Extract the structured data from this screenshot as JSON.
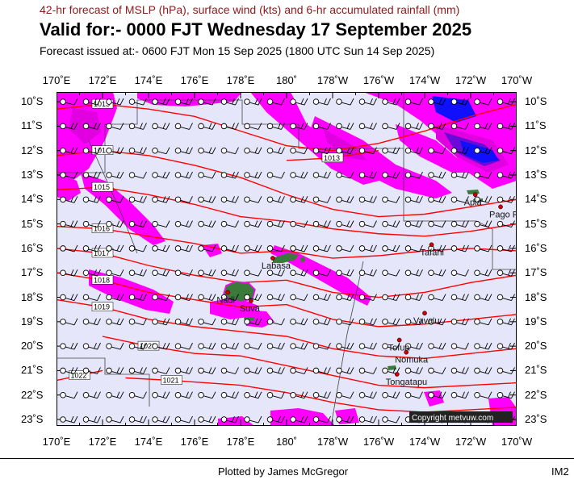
{
  "header": {
    "line1": "42-hr forecast of MSLP (hPa), surface wind (kts) and 6-hr accumulated rainfall (mm)",
    "valid": "Valid for:- 0000 FJT Wednesday 17 September 2025",
    "issued": "Forecast issued at:- 0600 FJT Mon 15 Sep 2025 (1800 UTC Sun 14 Sep 2025)"
  },
  "lon_labels": [
    "170˚E",
    "172˚E",
    "174˚E",
    "176˚E",
    "178˚E",
    "180˚",
    "178˚W",
    "176˚W",
    "174˚W",
    "172˚W",
    "170˚W"
  ],
  "lat_labels": [
    "10˚S",
    "11˚S",
    "12˚S",
    "13˚S",
    "14˚S",
    "15˚S",
    "16˚S",
    "17˚S",
    "18˚S",
    "19˚S",
    "20˚S",
    "21˚S",
    "22˚S",
    "23˚S"
  ],
  "places": [
    {
      "name": "Apia",
      "lon": -171.8,
      "lat": -13.8
    },
    {
      "name": "Pago Pago",
      "lon": -170.7,
      "lat": -14.3
    },
    {
      "name": "Tafahi",
      "lon": -173.7,
      "lat": -15.85
    },
    {
      "name": "Labasa",
      "lon": 179.4,
      "lat": -16.4
    },
    {
      "name": "Nadi",
      "lon": 177.45,
      "lat": -17.8
    },
    {
      "name": "Suva",
      "lon": 178.45,
      "lat": -18.15
    },
    {
      "name": "Vava'u",
      "lon": -174.0,
      "lat": -18.65
    },
    {
      "name": "Tofua",
      "lon": -175.1,
      "lat": -19.75
    },
    {
      "name": "Nomuka",
      "lon": -174.8,
      "lat": -20.25
    },
    {
      "name": "Tongatapu",
      "lon": -175.2,
      "lat": -21.15
    }
  ],
  "isobars": [
    {
      "label": "1013",
      "points": [
        [
          170,
          -10.3
        ],
        [
          172,
          -10.1
        ],
        [
          174,
          -10.3
        ],
        [
          176,
          -10.6
        ],
        [
          178,
          -11.2
        ],
        [
          180,
          -11.8
        ],
        [
          -178,
          -12.0
        ],
        [
          -176,
          -11.7
        ],
        [
          -174,
          -11.2
        ],
        [
          -172,
          -10.6
        ],
        [
          -170,
          -10.1
        ]
      ]
    },
    {
      "label": "1013",
      "points": [
        [
          180,
          -12.4
        ],
        [
          -178,
          -12.3
        ],
        [
          -176,
          -12.0
        ]
      ]
    },
    {
      "label": "1014",
      "points": [
        [
          170,
          -12.2
        ],
        [
          172,
          -12.0
        ],
        [
          174,
          -12.2
        ],
        [
          176,
          -12.6
        ],
        [
          178,
          -13.1
        ],
        [
          180,
          -13.8
        ],
        [
          -178,
          -14.4
        ],
        [
          -176,
          -14.7
        ],
        [
          -174,
          -14.6
        ],
        [
          -172,
          -14.3
        ],
        [
          -170,
          -14.0
        ]
      ]
    },
    {
      "label": "1015",
      "points": [
        [
          170,
          -13.6
        ],
        [
          172,
          -13.5
        ],
        [
          174,
          -13.8
        ],
        [
          176,
          -14.2
        ],
        [
          178,
          -14.7
        ],
        [
          180,
          -14.9
        ],
        [
          -178,
          -15.2
        ],
        [
          -176,
          -15.4
        ],
        [
          -174,
          -15.5
        ],
        [
          -172,
          -15.3
        ],
        [
          -170,
          -15.0
        ]
      ]
    },
    {
      "label": "1016",
      "points": [
        [
          170,
          -15.1
        ],
        [
          172,
          -15.2
        ],
        [
          174,
          -15.5
        ],
        [
          176,
          -15.8
        ],
        [
          178,
          -16.2
        ],
        [
          180,
          -16.1
        ],
        [
          -178,
          -16.4
        ],
        [
          -176,
          -16.3
        ],
        [
          -174,
          -16.1
        ],
        [
          -172,
          -16.0
        ],
        [
          -170,
          -16.1
        ]
      ]
    },
    {
      "label": "1017",
      "points": [
        [
          170,
          -16.0
        ],
        [
          172,
          -16.2
        ],
        [
          174,
          -16.7
        ],
        [
          176,
          -17.1
        ],
        [
          178,
          -17.4
        ],
        [
          180,
          -17.3
        ],
        [
          -178,
          -17.8
        ],
        [
          -176,
          -18.0
        ],
        [
          -174,
          -17.8
        ],
        [
          -172,
          -17.4
        ],
        [
          -170,
          -17.1
        ]
      ]
    },
    {
      "label": "1018",
      "points": [
        [
          170,
          -17.0
        ],
        [
          172,
          -17.3
        ],
        [
          174,
          -17.8
        ],
        [
          176,
          -18.1
        ],
        [
          178,
          -18.4
        ],
        [
          180,
          -18.3
        ],
        [
          -178,
          -18.9
        ],
        [
          -176,
          -19.2
        ],
        [
          -174,
          -19.1
        ],
        [
          -172,
          -18.9
        ],
        [
          -170,
          -18.7
        ]
      ]
    },
    {
      "label": "1019",
      "points": [
        [
          170,
          -18.1
        ],
        [
          172,
          -18.4
        ],
        [
          174,
          -18.9
        ],
        [
          176,
          -19.2
        ],
        [
          178,
          -19.4
        ],
        [
          180,
          -19.6
        ],
        [
          -178,
          -20.1
        ],
        [
          -176,
          -20.4
        ],
        [
          -174,
          -20.5
        ],
        [
          -172,
          -20.3
        ],
        [
          -170,
          -20.1
        ]
      ]
    },
    {
      "label": "1020",
      "points": [
        [
          172,
          -19.6
        ],
        [
          174,
          -20.0
        ],
        [
          176,
          -20.3
        ],
        [
          178,
          -20.4
        ],
        [
          180,
          -20.8
        ],
        [
          -178,
          -21.2
        ],
        [
          -176,
          -21.6
        ],
        [
          -174,
          -21.7
        ],
        [
          -172,
          -21.6
        ],
        [
          -170,
          -21.5
        ]
      ]
    },
    {
      "label": "1021",
      "points": [
        [
          173,
          -21.3
        ],
        [
          175,
          -21.4
        ],
        [
          178,
          -21.6
        ],
        [
          180,
          -21.9
        ],
        [
          -178,
          -22.3
        ],
        [
          -176,
          -22.6
        ],
        [
          -174,
          -22.7
        ],
        [
          -172,
          -22.6
        ],
        [
          -170,
          -22.5
        ]
      ]
    },
    {
      "label": "1022",
      "points": [
        [
          170,
          -21.4
        ],
        [
          171,
          -21.2
        ],
        [
          172,
          -21.0
        ]
      ]
    }
  ],
  "copyright": "Copyright metvuw.com",
  "footer": {
    "credit": "Plotted by James McGregor",
    "id": "IM2"
  },
  "colors": {
    "sea": "#e6e6fa",
    "rain_light": "#ff00ff",
    "rain_mid": "#e000e0",
    "rain_heavy": "#1010ff",
    "isobar": "#ff0000",
    "land": "#3a7a3a"
  }
}
